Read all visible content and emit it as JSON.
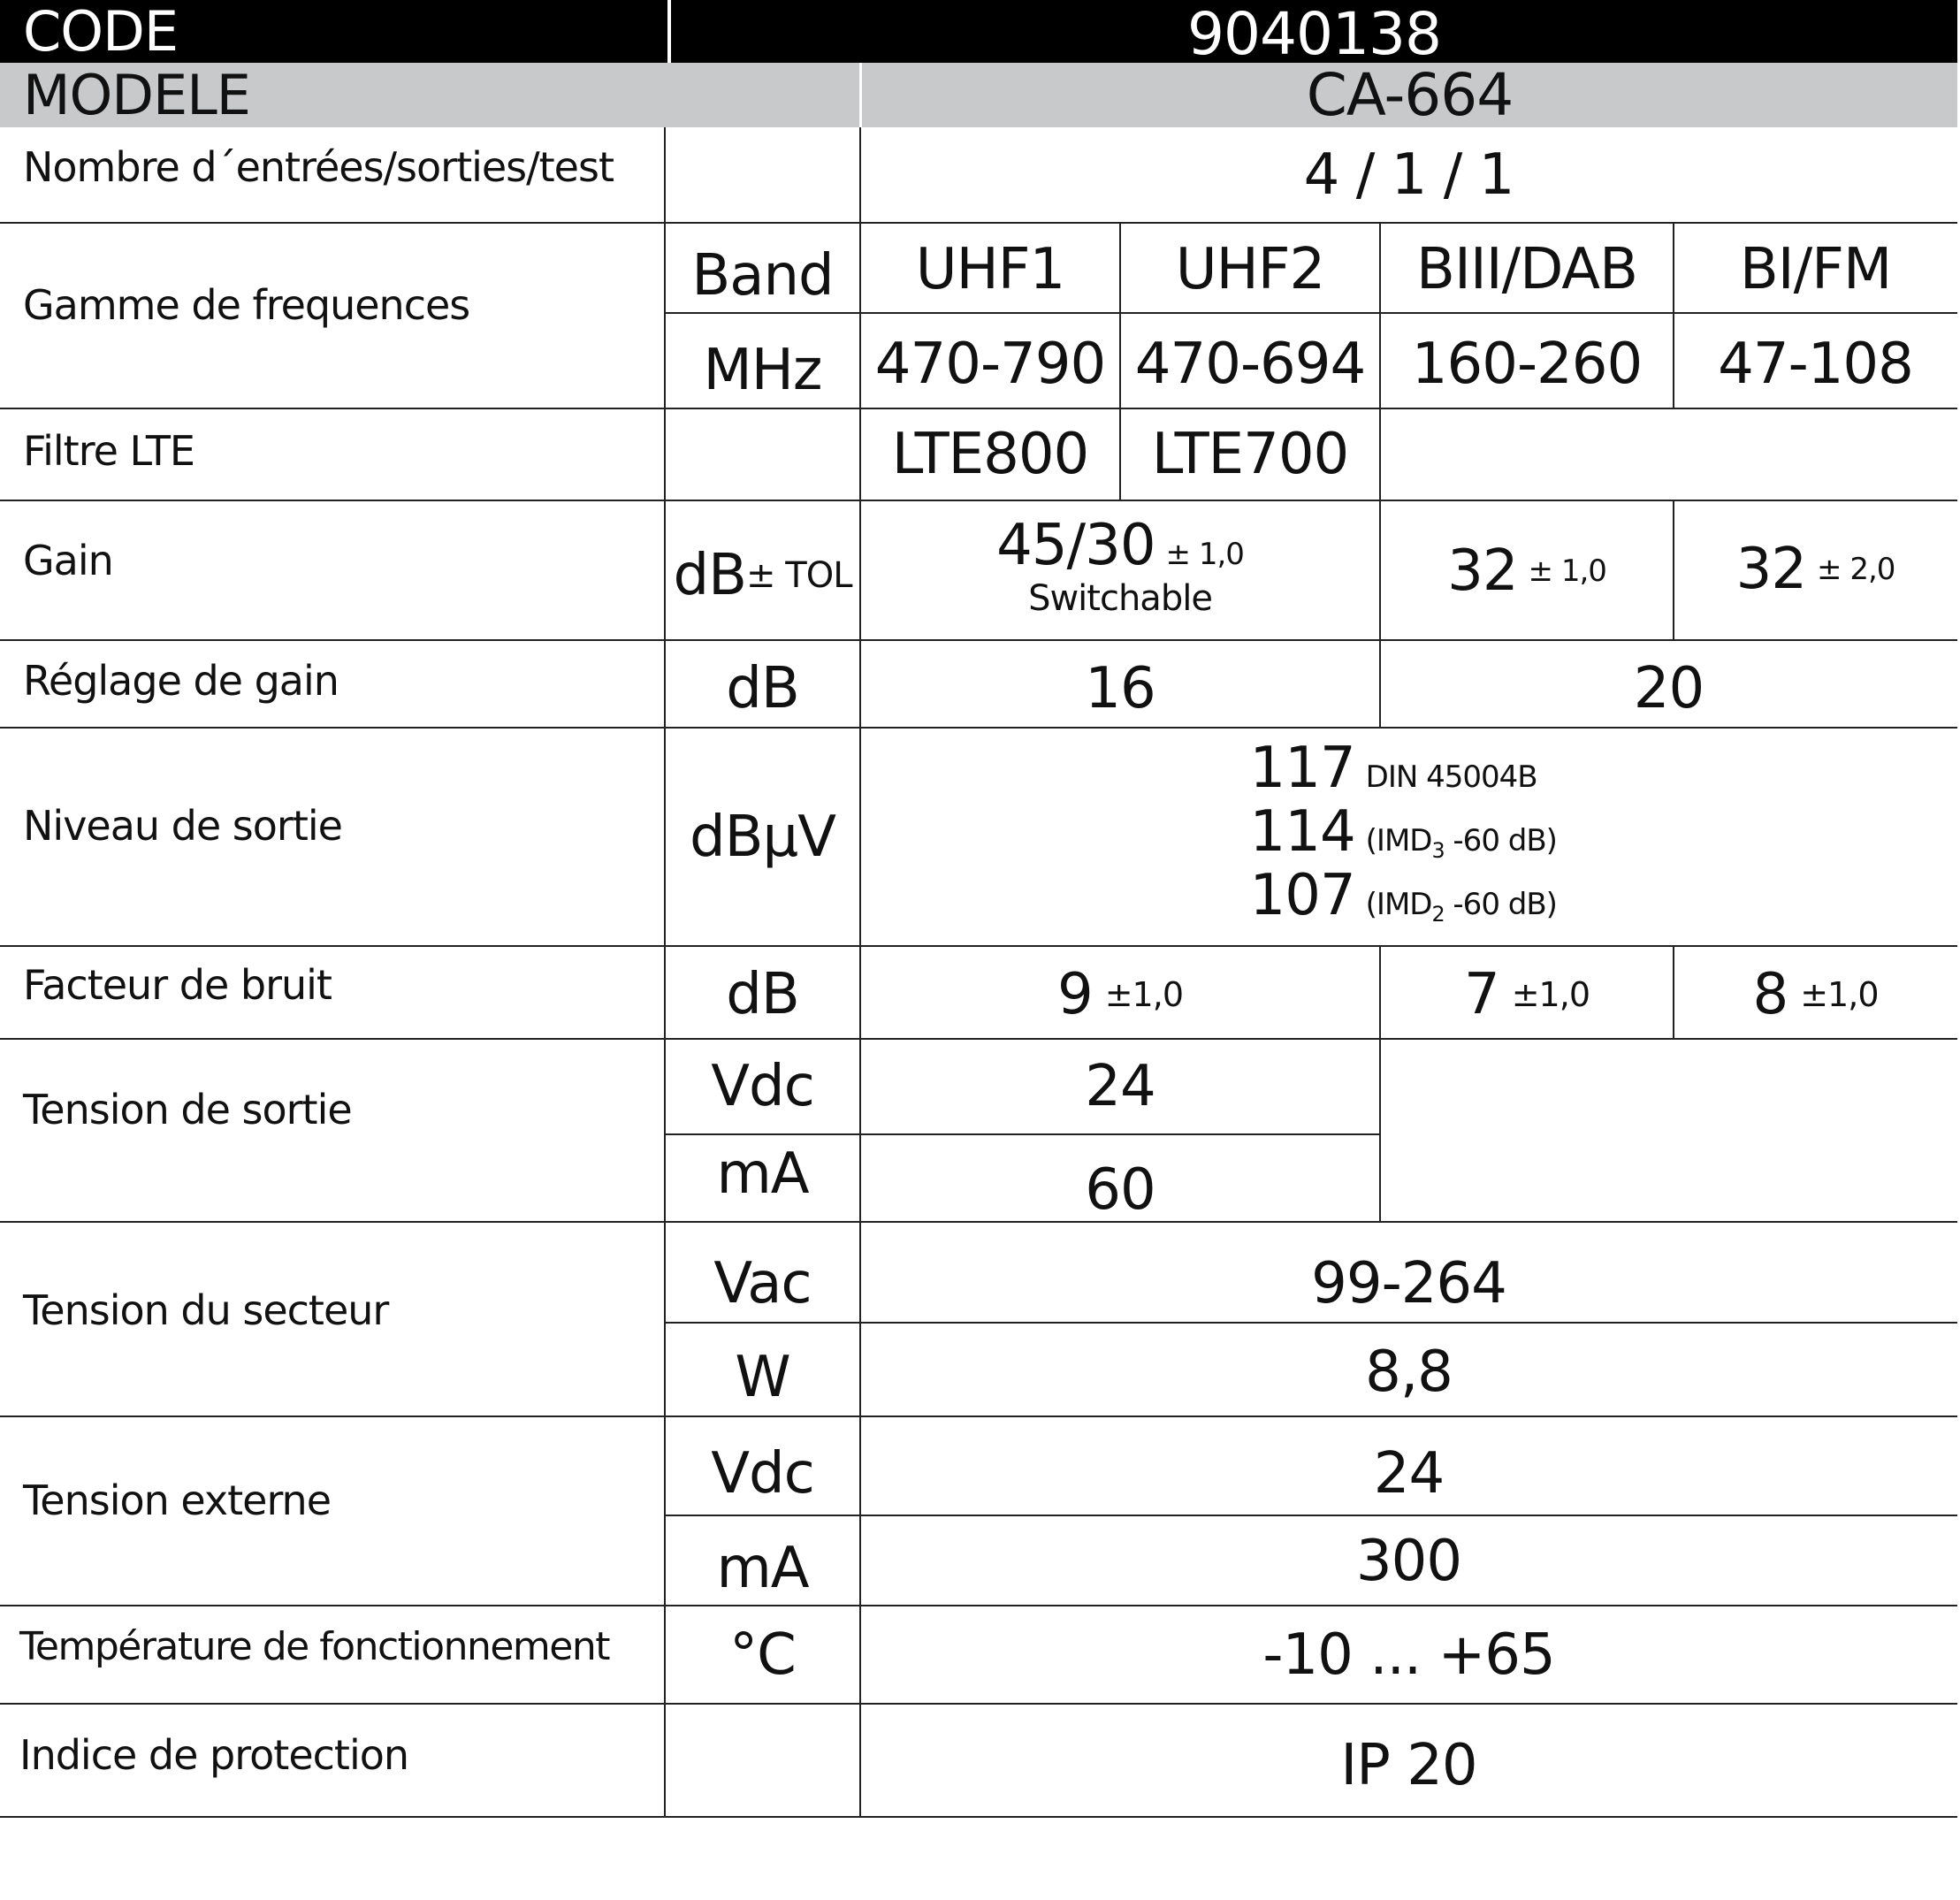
{
  "header": {
    "code_label": "CODE",
    "code_value": "9040138",
    "model_label": "MODELE",
    "model_value": "CA-664"
  },
  "colors": {
    "header_bg": "#000000",
    "model_bg": "#c8c9ca",
    "text": "#111111"
  },
  "rows": {
    "io": {
      "label": "Nombre d´entrées/sorties/test",
      "value": "4 / 1 / 1"
    },
    "freq": {
      "label": "Gamme de frequences",
      "unit1": "Band",
      "unit2": "MHz",
      "bands": [
        "UHF1",
        "UHF2",
        "BIII/DAB",
        "BI/FM"
      ],
      "mhz": [
        "470-790",
        "470-694",
        "160-260",
        "47-108"
      ]
    },
    "lte": {
      "label": "Filtre LTE",
      "values": [
        "LTE800",
        "LTE700"
      ]
    },
    "gain": {
      "label": "Gain",
      "unit": "dB",
      "unit_small": "± TOL",
      "v1": "45/30",
      "v1_tol": "± 1,0",
      "v1_note": "Switchable",
      "v2": "32",
      "v2_tol": "± 1,0",
      "v3": "32",
      "v3_tol": "± 2,0"
    },
    "gain_adj": {
      "label": "Réglage de gain",
      "unit": "dB",
      "values": [
        "16",
        "20"
      ]
    },
    "output": {
      "label": "Niveau de sortie",
      "unit": "dBµV",
      "l1": "117",
      "l1_note": "DIN 45004B",
      "l2": "114",
      "l2_a": "(IMD",
      "l2_sub": "3",
      "l2_b": " -60 dB)",
      "l3": "107",
      "l3_a": "(IMD",
      "l3_sub": "2",
      "l3_b": " -60 dB)"
    },
    "noise": {
      "label": "Facteur de bruit",
      "unit": "dB",
      "values": [
        {
          "v": "9",
          "tol": "±1,0"
        },
        {
          "v": "7",
          "tol": "±1,0"
        },
        {
          "v": "8",
          "tol": "±1,0"
        }
      ]
    },
    "out_voltage": {
      "label": "Tension de sortie",
      "unit1": "Vdc",
      "v1": "24",
      "unit2": "mA",
      "v2": "60"
    },
    "mains": {
      "label": "Tension du secteur",
      "unit1": "Vac",
      "v1": "99-264",
      "unit2": "W",
      "v2": "8,8"
    },
    "ext": {
      "label": "Tension externe",
      "unit1": "Vdc",
      "v1": "24",
      "unit2": "mA",
      "v2": "300"
    },
    "temp": {
      "label": "Température de fonctionnement",
      "unit": "°C",
      "value": "-10 ... +65"
    },
    "ip": {
      "label": "Indice de protection",
      "value": "IP 20"
    }
  }
}
